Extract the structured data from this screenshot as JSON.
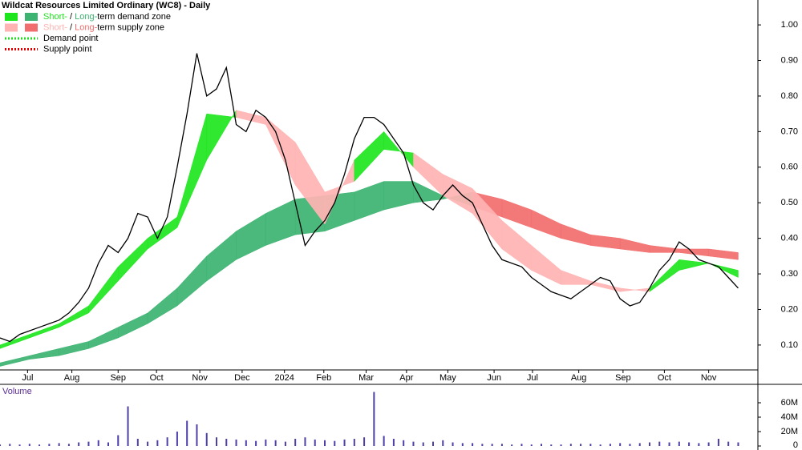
{
  "chart_data": {
    "type": "line",
    "title": "Wildcat Resources Limited Ordinary (WC8) - Daily",
    "x": [
      0,
      1,
      2,
      3,
      4,
      5,
      6,
      7,
      8,
      9,
      10,
      11,
      12,
      13,
      14,
      15,
      16,
      17,
      18,
      19,
      20,
      21,
      22,
      23,
      24,
      25,
      26,
      27,
      28,
      29,
      30,
      31,
      32,
      33,
      34,
      35,
      36,
      37,
      38,
      39,
      40,
      41,
      42,
      43,
      44,
      45,
      46,
      47,
      48,
      49,
      50,
      51,
      52,
      53,
      54,
      55,
      56,
      57,
      58,
      59,
      60,
      61,
      62,
      63,
      64,
      65,
      66,
      67,
      68,
      69,
      70,
      71,
      72,
      73,
      74,
      75
    ],
    "values": [
      0.12,
      0.11,
      0.13,
      0.14,
      0.15,
      0.16,
      0.17,
      0.19,
      0.22,
      0.26,
      0.33,
      0.38,
      0.36,
      0.4,
      0.47,
      0.46,
      0.4,
      0.46,
      0.6,
      0.75,
      0.92,
      0.8,
      0.82,
      0.88,
      0.72,
      0.7,
      0.76,
      0.74,
      0.7,
      0.62,
      0.5,
      0.38,
      0.42,
      0.45,
      0.5,
      0.58,
      0.68,
      0.74,
      0.74,
      0.72,
      0.68,
      0.64,
      0.55,
      0.5,
      0.48,
      0.52,
      0.55,
      0.52,
      0.5,
      0.44,
      0.38,
      0.34,
      0.33,
      0.32,
      0.29,
      0.27,
      0.25,
      0.24,
      0.23,
      0.25,
      0.27,
      0.29,
      0.28,
      0.23,
      0.21,
      0.22,
      0.26,
      0.31,
      0.34,
      0.39,
      0.37,
      0.34,
      0.33,
      0.32,
      0.29,
      0.26
    ],
    "color": "#000000",
    "zone_x": [
      0,
      3,
      6,
      9,
      12,
      15,
      18,
      21,
      24,
      27,
      30,
      33,
      36,
      39,
      42,
      45,
      48,
      51,
      54,
      57,
      60,
      63,
      66,
      69,
      72,
      75
    ],
    "short_zone": {
      "fast": [
        0.1,
        0.13,
        0.16,
        0.21,
        0.32,
        0.4,
        0.46,
        0.75,
        0.74,
        0.72,
        0.55,
        0.44,
        0.62,
        0.7,
        0.6,
        0.52,
        0.47,
        0.37,
        0.31,
        0.27,
        0.27,
        0.25,
        0.26,
        0.34,
        0.33,
        0.29
      ],
      "slow": [
        0.09,
        0.12,
        0.15,
        0.19,
        0.28,
        0.37,
        0.43,
        0.62,
        0.76,
        0.74,
        0.67,
        0.53,
        0.56,
        0.65,
        0.64,
        0.58,
        0.54,
        0.45,
        0.38,
        0.31,
        0.28,
        0.26,
        0.25,
        0.31,
        0.33,
        0.31
      ]
    },
    "long_zone": {
      "fast": [
        0.05,
        0.07,
        0.09,
        0.11,
        0.15,
        0.19,
        0.26,
        0.35,
        0.42,
        0.47,
        0.51,
        0.52,
        0.53,
        0.56,
        0.56,
        0.52,
        0.49,
        0.46,
        0.43,
        0.4,
        0.38,
        0.37,
        0.36,
        0.36,
        0.35,
        0.34
      ],
      "slow": [
        0.04,
        0.06,
        0.07,
        0.09,
        0.12,
        0.16,
        0.21,
        0.28,
        0.34,
        0.38,
        0.41,
        0.42,
        0.45,
        0.48,
        0.5,
        0.51,
        0.53,
        0.51,
        0.48,
        0.44,
        0.41,
        0.4,
        0.38,
        0.37,
        0.37,
        0.36
      ]
    },
    "xlim": [
      0,
      77
    ],
    "xticks": [
      {
        "value": 2.8,
        "label": "Jul"
      },
      {
        "value": 7.3,
        "label": "Aug"
      },
      {
        "value": 12,
        "label": "Sep"
      },
      {
        "value": 15.9,
        "label": "Oct"
      },
      {
        "value": 20.3,
        "label": "Nov"
      },
      {
        "value": 24.6,
        "label": "Dec"
      },
      {
        "value": 28.9,
        "label": "2024"
      },
      {
        "value": 32.9,
        "label": "Feb"
      },
      {
        "value": 37.2,
        "label": "Mar"
      },
      {
        "value": 41.3,
        "label": "Apr"
      },
      {
        "value": 45.5,
        "label": "May"
      },
      {
        "value": 50.2,
        "label": "Jun"
      },
      {
        "value": 54.1,
        "label": "Jul"
      },
      {
        "value": 58.8,
        "label": "Aug"
      },
      {
        "value": 63.3,
        "label": "Sep"
      },
      {
        "value": 67.5,
        "label": "Oct"
      },
      {
        "value": 72,
        "label": "Nov"
      }
    ],
    "ylim": [
      0.03,
      1.07
    ],
    "yticks": [
      {
        "value": 0.1,
        "label": "0.10"
      },
      {
        "value": 0.2,
        "label": "0.20"
      },
      {
        "value": 0.3,
        "label": "0.30"
      },
      {
        "value": 0.4,
        "label": "0.40"
      },
      {
        "value": 0.5,
        "label": "0.50"
      },
      {
        "value": 0.6,
        "label": "0.60"
      },
      {
        "value": 0.7,
        "label": "0.70"
      },
      {
        "value": 0.8,
        "label": "0.80"
      },
      {
        "value": 0.9,
        "label": "0.90"
      },
      {
        "value": 1.0,
        "label": "1.00"
      }
    ],
    "legend": [
      {
        "short": "Short-",
        "sep": " / ",
        "long": "Long-",
        "rest": "term demand zone",
        "color_short": "#1ee61e",
        "color_long": "#3cb371"
      },
      {
        "short": "Short-",
        "sep": " / ",
        "long": "Long-",
        "rest": "term supply zone",
        "color_short": "#ffb3b3",
        "color_long": "#f26d6d"
      },
      {
        "label": "Demand point",
        "color": "#22dd22"
      },
      {
        "label": "Supply point",
        "color": "#dd0000"
      }
    ],
    "volume": {
      "title": "Volume",
      "color": "#4b3fa8",
      "values": [
        2000000,
        3000000,
        2000000,
        3000000,
        2000000,
        3000000,
        4000000,
        3000000,
        5000000,
        6000000,
        8000000,
        5000000,
        15000000,
        55000000,
        10000000,
        6000000,
        8000000,
        12000000,
        20000000,
        35000000,
        30000000,
        18000000,
        12000000,
        10000000,
        9000000,
        8000000,
        7000000,
        9000000,
        8000000,
        6000000,
        10000000,
        12000000,
        9000000,
        8000000,
        7000000,
        9000000,
        10000000,
        12000000,
        75000000,
        14000000,
        10000000,
        8000000,
        6000000,
        5000000,
        6000000,
        8000000,
        5000000,
        4000000,
        4000000,
        3000000,
        3000000,
        3000000,
        2000000,
        3000000,
        2000000,
        3000000,
        2000000,
        2000000,
        3000000,
        3000000,
        3000000,
        2000000,
        3000000,
        4000000,
        3000000,
        4000000,
        5000000,
        6000000,
        5000000,
        6000000,
        5000000,
        4000000,
        5000000,
        10000000,
        6000000,
        5000000
      ],
      "ylim": [
        0,
        80000000
      ],
      "yticks": [
        {
          "value": 0,
          "label": "0"
        },
        {
          "value": 20000000,
          "label": "20M"
        },
        {
          "value": 40000000,
          "label": "40M"
        },
        {
          "value": 60000000,
          "label": "60M"
        }
      ]
    }
  }
}
